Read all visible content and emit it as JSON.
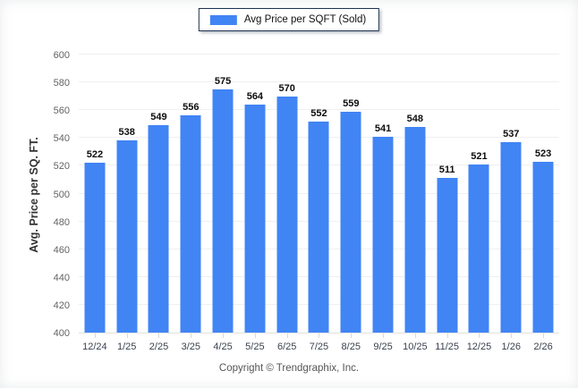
{
  "chart": {
    "legend_label": "Avg Price per SQFT (Sold)",
    "y_axis_title": "Avg. Price per SQ. FT.",
    "copyright": "Copyright © Trendgraphix, Inc.",
    "colors": {
      "bar": "#4184F4",
      "legend_border": "#1e3250",
      "grid": "#f0f0f0",
      "axis_line": "#e0e0e0"
    }
  },
  "chart_data": {
    "type": "bar",
    "title": "",
    "xlabel": "",
    "ylabel": "Avg. Price per SQ. FT.",
    "categories": [
      "12/24",
      "1/25",
      "2/25",
      "3/25",
      "4/25",
      "5/25",
      "6/25",
      "7/25",
      "8/25",
      "9/25",
      "10/25",
      "11/25",
      "12/25",
      "1/26",
      "2/26"
    ],
    "values": [
      522,
      538,
      549,
      556,
      575,
      564,
      570,
      552,
      559,
      541,
      548,
      511,
      521,
      537,
      523
    ],
    "ylim": [
      400,
      600
    ],
    "yticks": [
      400,
      420,
      440,
      460,
      480,
      500,
      520,
      540,
      560,
      580,
      600
    ],
    "grid": "horizontal",
    "bar_value_labels": true,
    "legend": {
      "position": "top-center",
      "entries": [
        "Avg Price per SQFT (Sold)"
      ]
    }
  }
}
